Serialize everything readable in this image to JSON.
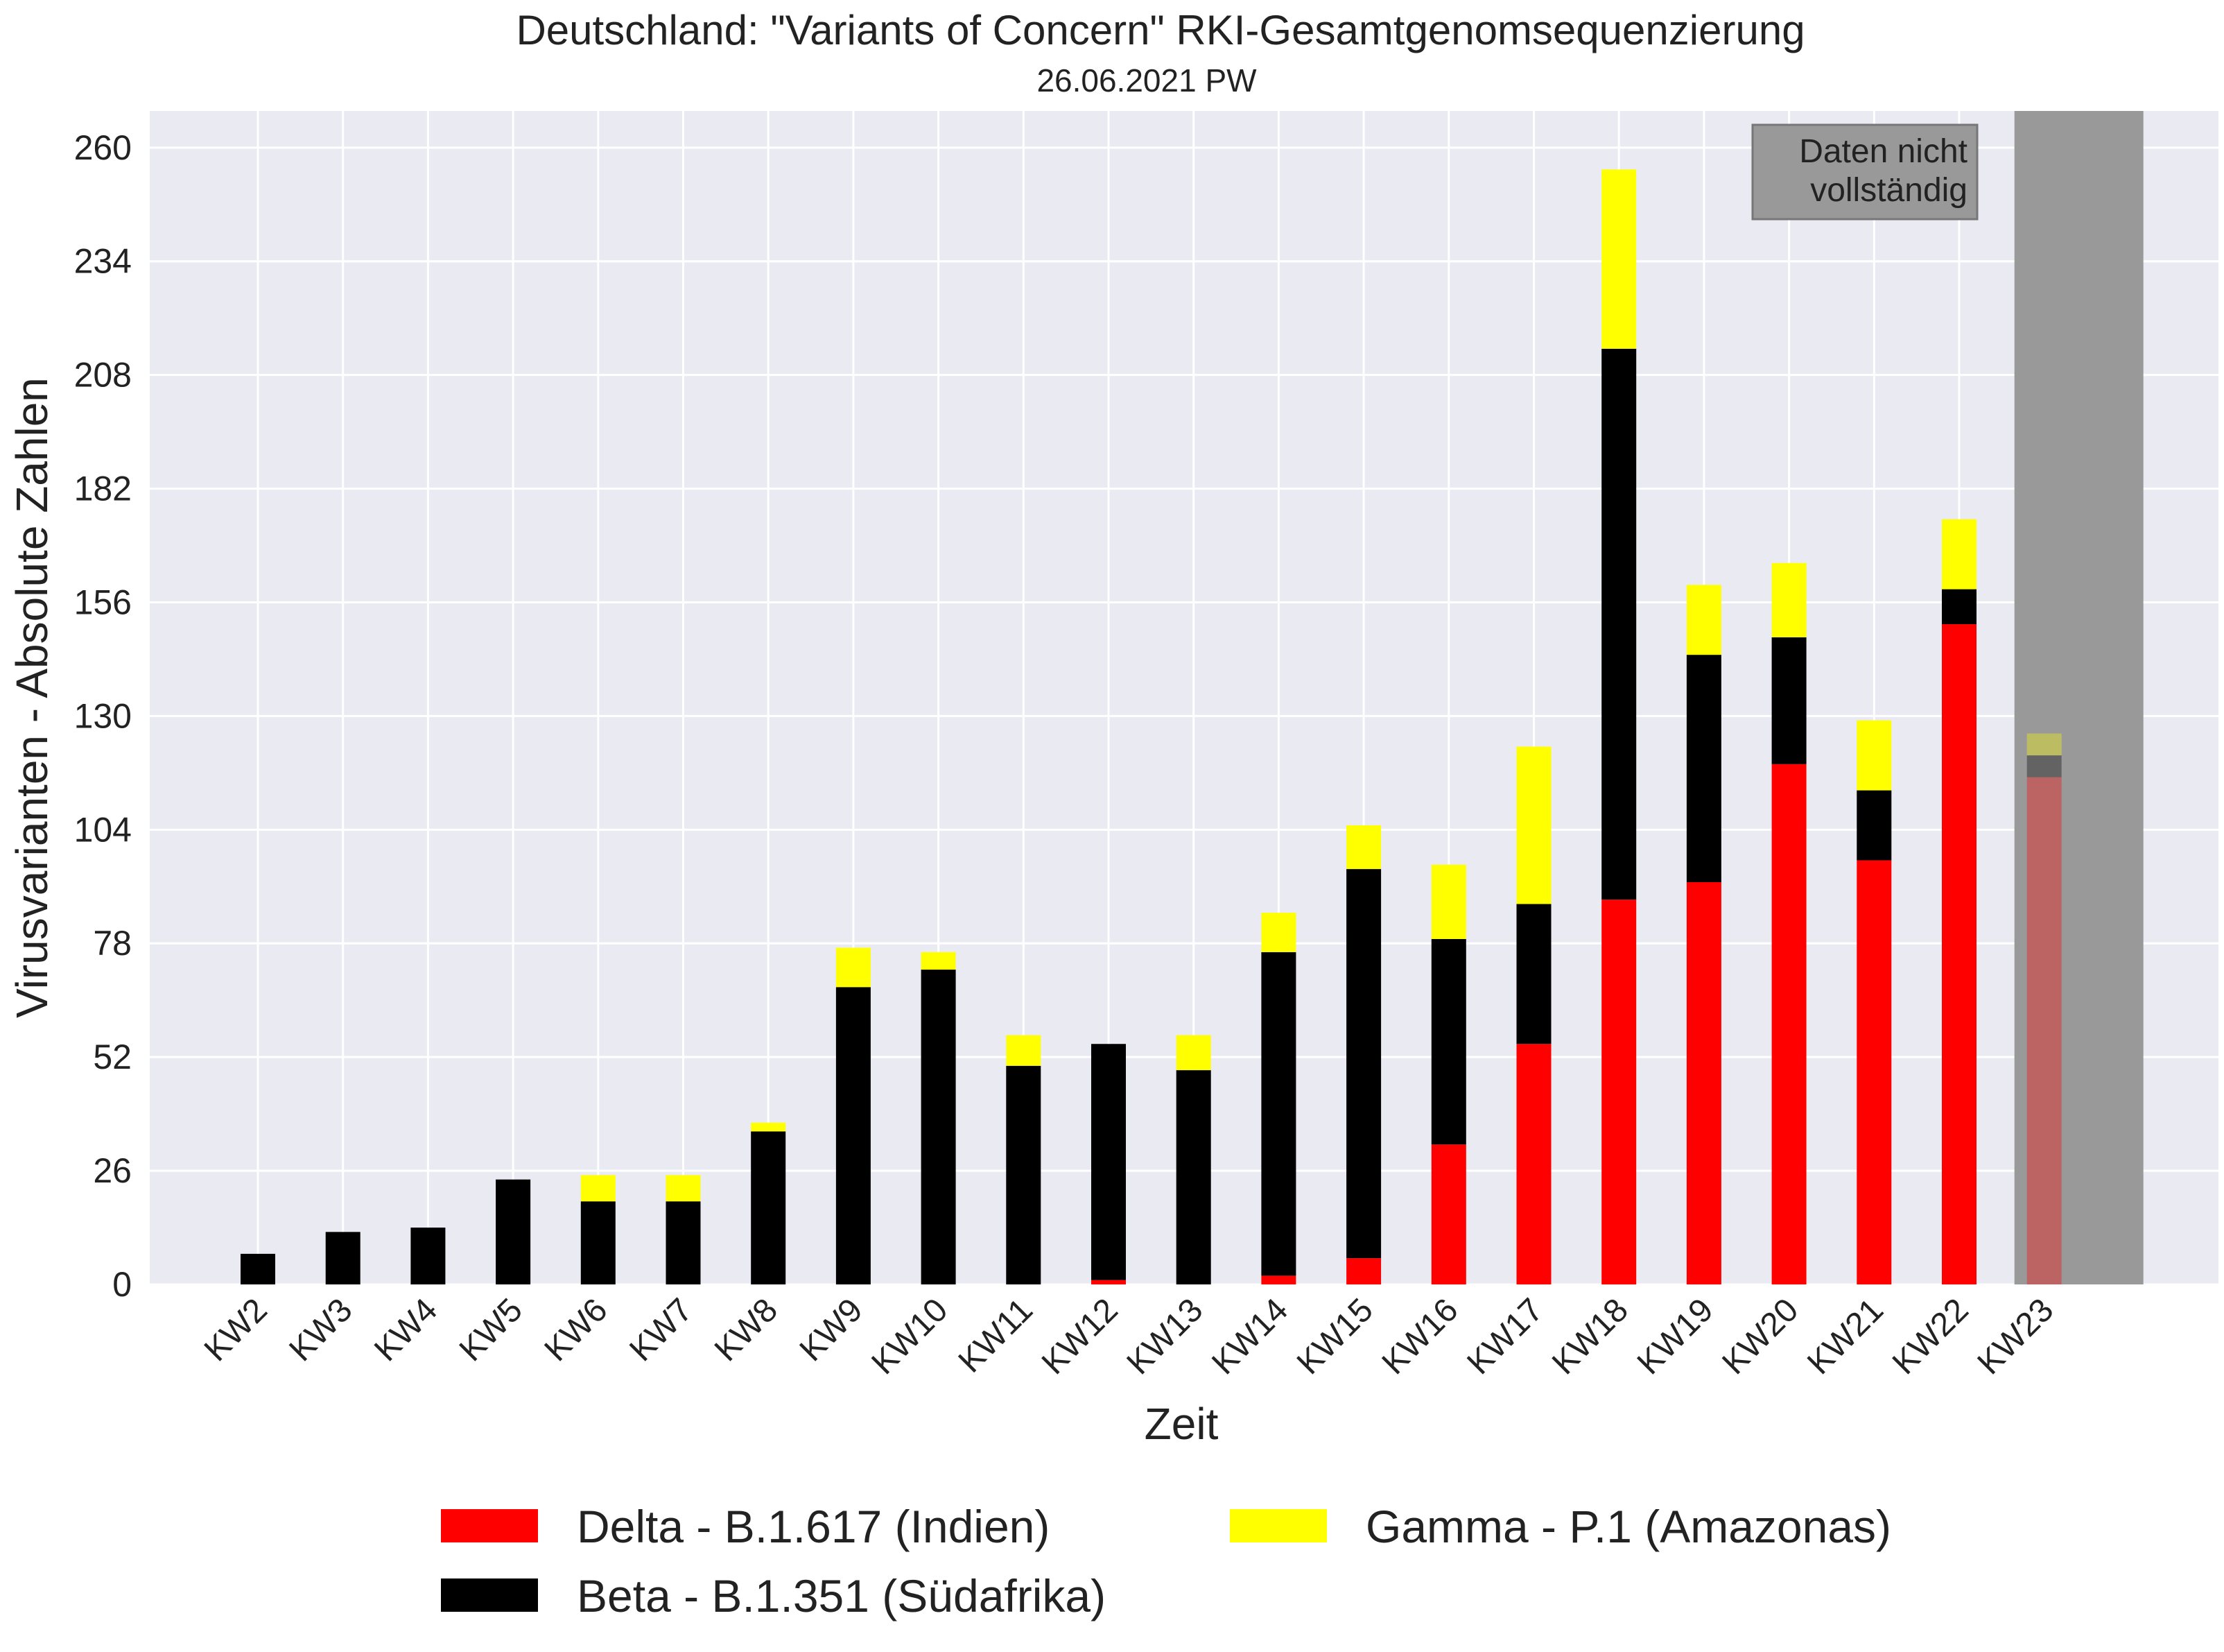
{
  "chart_data": {
    "type": "bar",
    "stacked": true,
    "title": "Deutschland: \"Variants of Concern\" RKI-Gesamtgenomsequenzierung",
    "subtitle": "26.06.2021 PW",
    "xlabel": "Zeit",
    "ylabel": "Virusvarianten - Absolute Zahlen",
    "ylim": [
      0,
      268
    ],
    "yticks": [
      0,
      26,
      52,
      78,
      104,
      130,
      156,
      182,
      208,
      234,
      260
    ],
    "grid": true,
    "categories": [
      "KW2",
      "KW3",
      "KW4",
      "KW5",
      "KW6",
      "KW7",
      "KW8",
      "KW9",
      "KW10",
      "KW11",
      "KW12",
      "KW13",
      "KW14",
      "KW15",
      "KW16",
      "KW17",
      "KW18",
      "KW19",
      "KW20",
      "KW21",
      "KW22",
      "KW23"
    ],
    "series": [
      {
        "name": "Delta - B.1.617 (Indien)",
        "color": "#ff0000",
        "values": [
          0,
          0,
          0,
          0,
          0,
          0,
          0,
          0,
          0,
          0,
          1,
          0,
          2,
          6,
          32,
          55,
          88,
          92,
          119,
          97,
          151,
          116
        ]
      },
      {
        "name": "Beta - B.1.351 (Südafrika)",
        "color": "#000000",
        "values": [
          7,
          12,
          13,
          24,
          19,
          19,
          35,
          68,
          72,
          50,
          54,
          49,
          74,
          89,
          47,
          32,
          126,
          52,
          29,
          16,
          8,
          5
        ]
      },
      {
        "name": "Gamma - P.1 (Amazonas)",
        "color": "#ffff00",
        "values": [
          0,
          0,
          0,
          0,
          6,
          6,
          2,
          9,
          4,
          7,
          0,
          8,
          9,
          10,
          17,
          36,
          41,
          16,
          17,
          16,
          16,
          5
        ]
      }
    ],
    "incomplete_category": "KW23",
    "incomplete_note": [
      "Daten nicht",
      "vollständig"
    ],
    "legend_position": "bottom",
    "colors": {
      "background": "#eaeaf2",
      "grid": "#ffffff",
      "incomplete_band": "#999999"
    }
  }
}
